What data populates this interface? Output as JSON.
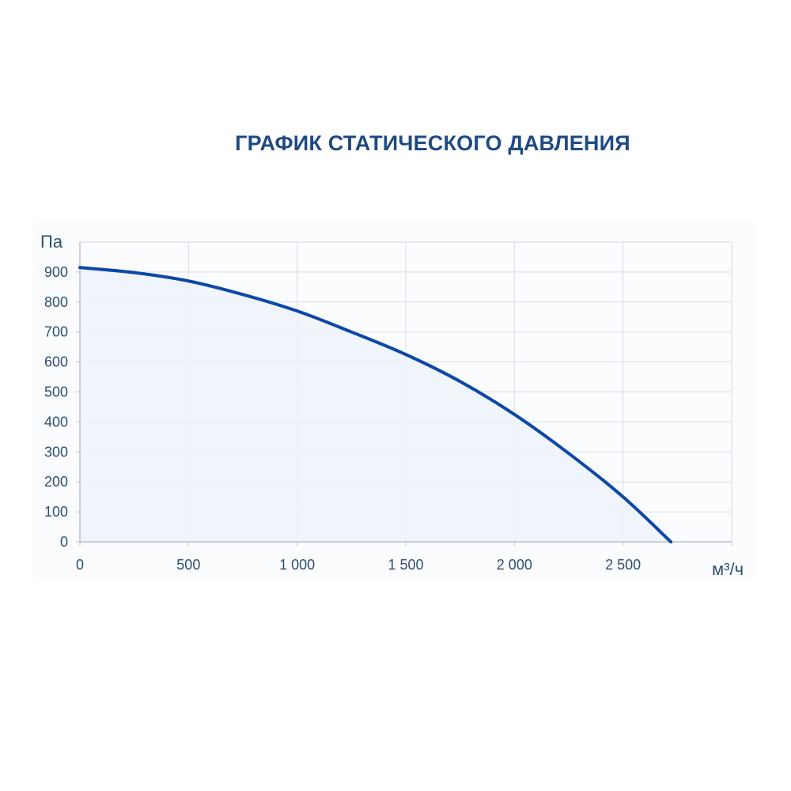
{
  "chart_data": {
    "type": "area",
    "title": "ГРАФИК СТАТИЧЕСКОГО ДАВЛЕНИЯ",
    "xlabel": "м³/ч",
    "ylabel": "Па",
    "xlim": [
      0,
      3000
    ],
    "ylim": [
      0,
      1000
    ],
    "x_ticks": [
      0,
      500,
      1000,
      1500,
      2000,
      2500
    ],
    "x_tick_labels": [
      "0",
      "500",
      "1 000",
      "1 500",
      "2 000",
      "2 500"
    ],
    "y_ticks": [
      0,
      100,
      200,
      300,
      400,
      500,
      600,
      700,
      800,
      900
    ],
    "y_tick_labels": [
      "0",
      "100",
      "200",
      "300",
      "400",
      "500",
      "600",
      "700",
      "800",
      "900"
    ],
    "grid": true,
    "series": [
      {
        "x": [
          0,
          250,
          500,
          750,
          1000,
          1250,
          1500,
          1750,
          2000,
          2250,
          2500,
          2720
        ],
        "y": [
          915,
          898,
          870,
          825,
          770,
          700,
          625,
          535,
          425,
          295,
          150,
          0
        ]
      }
    ],
    "colors": {
      "line": "#0d47a8",
      "fill": "#eef3fb",
      "grid": "#d6dde8",
      "axis": "#b8c2d0",
      "title": "#1f4a82",
      "text": "#2f4f6f"
    }
  }
}
